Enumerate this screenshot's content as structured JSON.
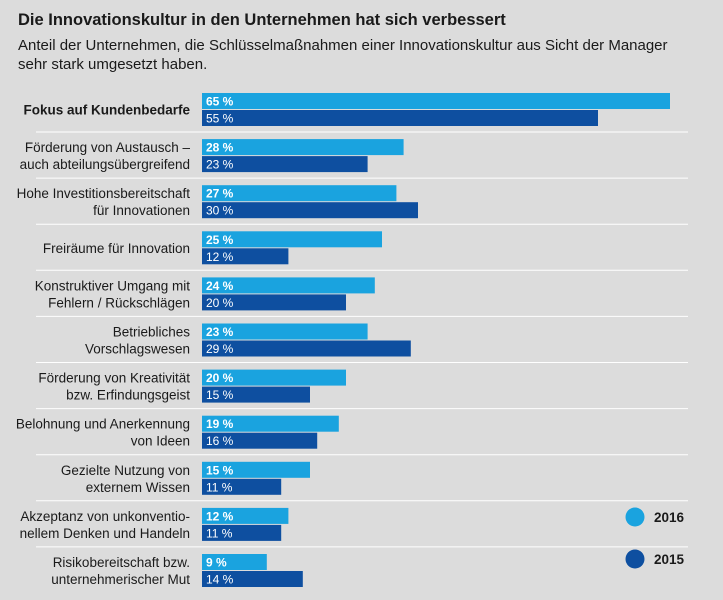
{
  "chart_data": {
    "type": "bar",
    "orientation": "horizontal",
    "title": "Die Innovationskultur in den Unternehmen hat sich verbessert",
    "subtitle": "Anteil der Unternehmen, die Schlüsselmaßnahmen einer Innovationskultur aus Sicht der Manager sehr stark umgesetzt haben.",
    "unit": "%",
    "categories": [
      [
        "Fokus auf Kundenbedarfe"
      ],
      [
        "Förderung von Austausch –",
        "auch abteilungsübergreifend"
      ],
      [
        "Hohe Investitionsbereitschaft",
        "für Innovationen"
      ],
      [
        "Freiräume für Innovation"
      ],
      [
        "Konstruktiver Umgang mit",
        "Fehlern / Rückschlägen"
      ],
      [
        "Betriebliches",
        "Vorschlagswesen"
      ],
      [
        "Förderung von Kreativität",
        "bzw. Erfindungsgeist"
      ],
      [
        "Belohnung und Anerkennung",
        "von Ideen"
      ],
      [
        "Gezielte Nutzung von",
        "externem Wissen"
      ],
      [
        "Akzeptanz von unkonventio-",
        "nellem Denken und Handeln"
      ],
      [
        "Risikobereitschaft bzw.",
        "unternehmerischer Mut"
      ]
    ],
    "series": [
      {
        "name": "2016",
        "color": "#1aa3df",
        "values": [
          65,
          28,
          27,
          25,
          24,
          23,
          20,
          19,
          15,
          12,
          9
        ]
      },
      {
        "name": "2015",
        "color": "#0e4fa0",
        "values": [
          55,
          23,
          30,
          12,
          20,
          29,
          15,
          16,
          11,
          11,
          14
        ]
      }
    ],
    "xlim": [
      0,
      65
    ],
    "legend": "bottom-right",
    "highlight_first_category": true
  }
}
